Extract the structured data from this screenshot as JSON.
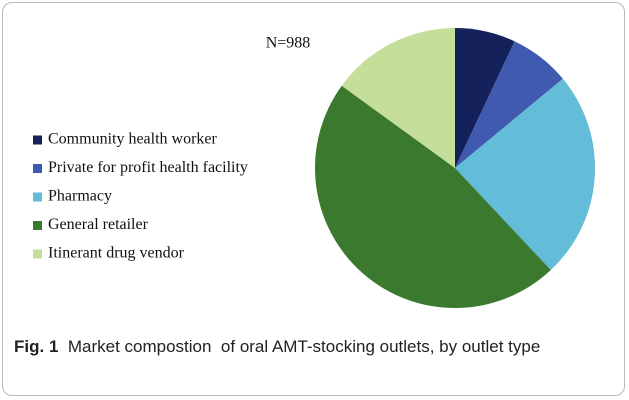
{
  "chart_data": {
    "type": "pie",
    "title": "N=988",
    "categories": [
      "Community health worker",
      "Private for profit health facility",
      "Pharmacy",
      "General retailer",
      "Itinerant drug vendor"
    ],
    "values": [
      7,
      7,
      24,
      47,
      15
    ],
    "colors": [
      "#14215a",
      "#3f5aae",
      "#63bcd8",
      "#3b7a2e",
      "#c5df9b"
    ],
    "caption_label": "Fig. 1",
    "caption_text": "Market compostion  of oral AMT-stocking outlets, by outlet type"
  }
}
